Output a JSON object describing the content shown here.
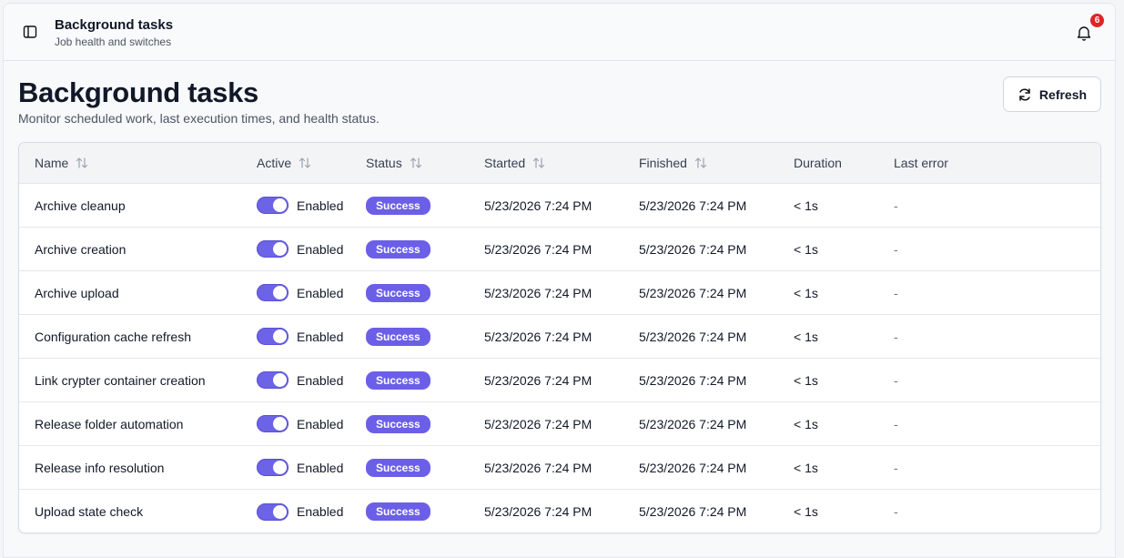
{
  "header": {
    "title": "Background tasks",
    "subtitle": "Job health and switches",
    "notification_count": 6
  },
  "page": {
    "title": "Background tasks",
    "description": "Monitor scheduled work, last execution times, and health status.",
    "refresh_button": "Refresh"
  },
  "table": {
    "columns": [
      {
        "label": "Name",
        "sortable": true
      },
      {
        "label": "Active",
        "sortable": true
      },
      {
        "label": "Status",
        "sortable": true
      },
      {
        "label": "Started",
        "sortable": true
      },
      {
        "label": "Finished",
        "sortable": true
      },
      {
        "label": "Duration",
        "sortable": false
      },
      {
        "label": "Last error",
        "sortable": false
      }
    ],
    "rows": [
      [
        "Archive cleanup",
        "Enabled",
        "Success",
        "5/23/2026 7:24 PM",
        "5/23/2026 7:24 PM",
        "< 1s",
        "-"
      ],
      [
        "Archive creation",
        "Enabled",
        "Success",
        "5/23/2026 7:24 PM",
        "5/23/2026 7:24 PM",
        "< 1s",
        "-"
      ],
      [
        "Archive upload",
        "Enabled",
        "Success",
        "5/23/2026 7:24 PM",
        "5/23/2026 7:24 PM",
        "< 1s",
        "-"
      ],
      [
        "Configuration cache refresh",
        "Enabled",
        "Success",
        "5/23/2026 7:24 PM",
        "5/23/2026 7:24 PM",
        "< 1s",
        "-"
      ],
      [
        "Link crypter container creation",
        "Enabled",
        "Success",
        "5/23/2026 7:24 PM",
        "5/23/2026 7:24 PM",
        "< 1s",
        "-"
      ],
      [
        "Release folder automation",
        "Enabled",
        "Success",
        "5/23/2026 7:24 PM",
        "5/23/2026 7:24 PM",
        "< 1s",
        "-"
      ],
      [
        "Release info resolution",
        "Enabled",
        "Success",
        "5/23/2026 7:24 PM",
        "5/23/2026 7:24 PM",
        "< 1s",
        "-"
      ],
      [
        "Upload state check",
        "Enabled",
        "Success",
        "5/23/2026 7:24 PM",
        "5/23/2026 7:24 PM",
        "< 1s",
        "-"
      ]
    ]
  }
}
